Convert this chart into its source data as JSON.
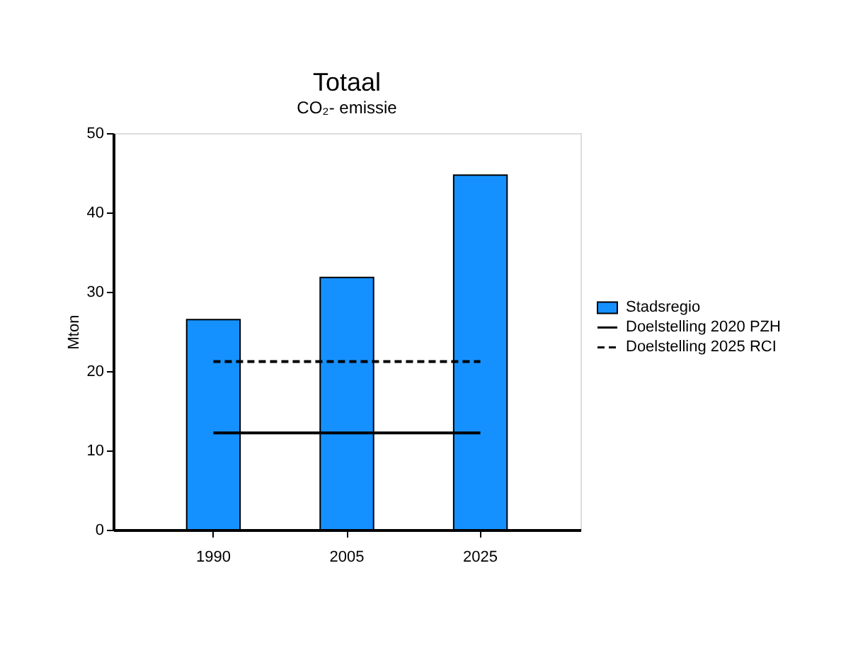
{
  "chart_data": {
    "type": "bar",
    "title": "Totaal",
    "subtitle": "CO₂- emissie",
    "ylabel": "Mton",
    "categories": [
      "1990",
      "2005",
      "2025"
    ],
    "series": [
      {
        "name": "Stadsregio",
        "color": "#1591ff",
        "values": [
          26.5,
          31.8,
          44.7
        ]
      },
      {
        "name": "Doelstelling 2020 PZH",
        "type": "line",
        "color": "#000000",
        "line_style": "solid",
        "values": [
          12.2,
          12.2,
          12.2
        ]
      },
      {
        "name": "Doelstelling 2025 RCI",
        "type": "line",
        "color": "#000000",
        "line_style": "dashed",
        "values": [
          21.2,
          21.2,
          21.2
        ]
      }
    ],
    "ylim": [
      0,
      50
    ],
    "yticks": [
      0,
      10,
      20,
      30,
      40,
      50
    ],
    "grid": false,
    "legend": "right"
  }
}
